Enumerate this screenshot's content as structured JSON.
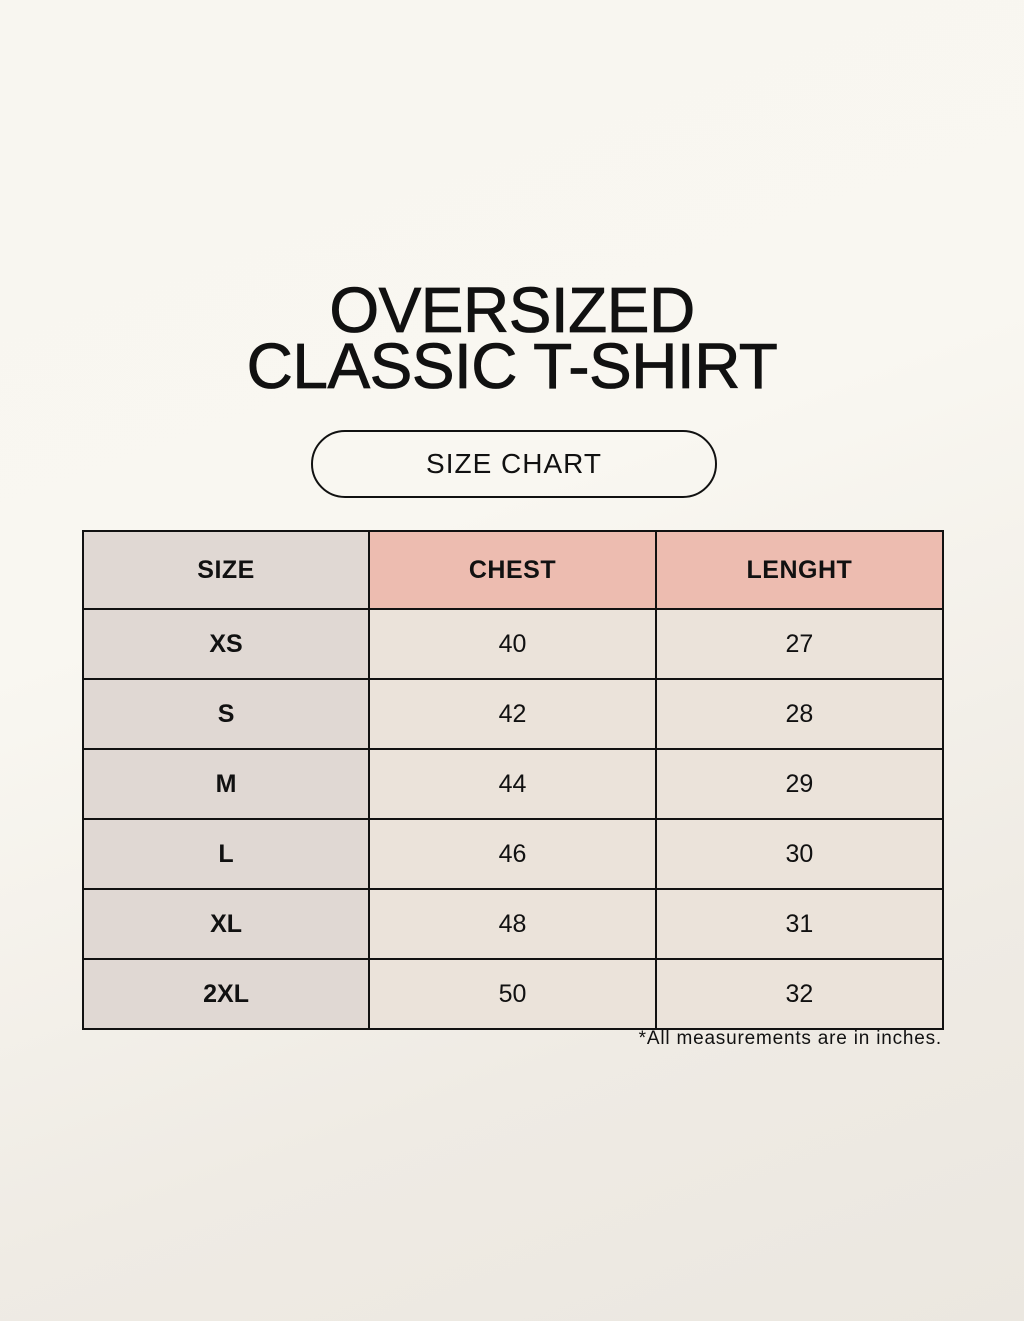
{
  "title": {
    "line1": "OVERSIZED",
    "line2": "CLASSIC T-SHIRT"
  },
  "badge": "SIZE CHART",
  "table": {
    "headers": [
      "SIZE",
      "CHEST",
      "LENGHT"
    ],
    "rows": [
      [
        "XS",
        "40",
        "27"
      ],
      [
        "S",
        "42",
        "28"
      ],
      [
        "M",
        "44",
        "29"
      ],
      [
        "L",
        "46",
        "30"
      ],
      [
        "XL",
        "48",
        "31"
      ],
      [
        "2XL",
        "50",
        "32"
      ]
    ]
  },
  "note": "*All measurements are in inches.",
  "colors": {
    "size_column": "#e0d8d3",
    "header_accent": "#edbcb0",
    "value_cells": "#ebe3da"
  }
}
